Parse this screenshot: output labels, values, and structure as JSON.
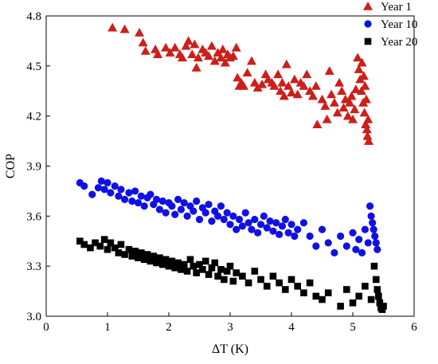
{
  "chart_data": {
    "type": "scatter",
    "xlabel": "ΔT (K)",
    "ylabel": "COP",
    "xlim": [
      0,
      6
    ],
    "ylim": [
      3.0,
      4.8
    ],
    "x_ticks": [
      "0",
      "1",
      "2",
      "3",
      "4",
      "5",
      "6"
    ],
    "y_ticks": [
      "3.0",
      "3.3",
      "3.6",
      "3.9",
      "4.2",
      "4.5",
      "4.8"
    ],
    "grid": false,
    "legend_position": "top-right",
    "series": [
      {
        "name": "Year 1",
        "marker": "triangle",
        "color": "#cc1f1a",
        "points": [
          [
            1.08,
            4.73
          ],
          [
            1.28,
            4.72
          ],
          [
            1.52,
            4.7
          ],
          [
            1.58,
            4.64
          ],
          [
            1.62,
            4.59
          ],
          [
            1.78,
            4.6
          ],
          [
            1.82,
            4.57
          ],
          [
            1.95,
            4.61
          ],
          [
            2.02,
            4.58
          ],
          [
            2.1,
            4.61
          ],
          [
            2.18,
            4.57
          ],
          [
            2.22,
            4.55
          ],
          [
            2.28,
            4.62
          ],
          [
            2.32,
            4.65
          ],
          [
            2.38,
            4.57
          ],
          [
            2.42,
            4.63
          ],
          [
            2.45,
            4.49
          ],
          [
            2.48,
            4.55
          ],
          [
            2.55,
            4.6
          ],
          [
            2.6,
            4.58
          ],
          [
            2.65,
            4.56
          ],
          [
            2.7,
            4.62
          ],
          [
            2.75,
            4.53
          ],
          [
            2.8,
            4.58
          ],
          [
            2.85,
            4.55
          ],
          [
            2.88,
            4.6
          ],
          [
            2.92,
            4.52
          ],
          [
            2.96,
            4.57
          ],
          [
            3.0,
            4.55
          ],
          [
            3.05,
            4.56
          ],
          [
            3.1,
            4.61
          ],
          [
            3.12,
            4.43
          ],
          [
            3.15,
            4.38
          ],
          [
            3.18,
            4.4
          ],
          [
            3.22,
            4.38
          ],
          [
            3.28,
            4.46
          ],
          [
            3.35,
            4.53
          ],
          [
            3.4,
            4.4
          ],
          [
            3.45,
            4.37
          ],
          [
            3.52,
            4.39
          ],
          [
            3.58,
            4.45
          ],
          [
            3.62,
            4.42
          ],
          [
            3.68,
            4.4
          ],
          [
            3.72,
            4.38
          ],
          [
            3.78,
            4.45
          ],
          [
            3.82,
            4.35
          ],
          [
            3.85,
            4.4
          ],
          [
            3.88,
            4.32
          ],
          [
            3.92,
            4.51
          ],
          [
            3.95,
            4.38
          ],
          [
            4.0,
            4.34
          ],
          [
            4.05,
            4.42
          ],
          [
            4.1,
            4.33
          ],
          [
            4.15,
            4.4
          ],
          [
            4.2,
            4.38
          ],
          [
            4.25,
            4.45
          ],
          [
            4.3,
            4.35
          ],
          [
            4.35,
            4.32
          ],
          [
            4.4,
            4.38
          ],
          [
            4.42,
            4.15
          ],
          [
            4.5,
            4.3
          ],
          [
            4.55,
            4.26
          ],
          [
            4.58,
            4.18
          ],
          [
            4.62,
            4.47
          ],
          [
            4.65,
            4.33
          ],
          [
            4.7,
            4.28
          ],
          [
            4.75,
            4.22
          ],
          [
            4.78,
            4.4
          ],
          [
            4.82,
            4.35
          ],
          [
            4.85,
            4.25
          ],
          [
            4.88,
            4.3
          ],
          [
            4.92,
            4.2
          ],
          [
            4.95,
            4.28
          ],
          [
            4.98,
            4.32
          ],
          [
            5.0,
            4.18
          ],
          [
            5.03,
            4.24
          ],
          [
            5.05,
            4.36
          ],
          [
            5.08,
            4.55
          ],
          [
            5.1,
            4.48
          ],
          [
            5.12,
            4.42
          ],
          [
            5.14,
            4.35
          ],
          [
            5.15,
            4.52
          ],
          [
            5.17,
            4.28
          ],
          [
            5.18,
            4.44
          ],
          [
            5.19,
            4.22
          ],
          [
            5.2,
            4.38
          ],
          [
            5.21,
            4.15
          ],
          [
            5.22,
            4.3
          ],
          [
            5.23,
            4.12
          ],
          [
            5.24,
            4.08
          ],
          [
            5.25,
            4.18
          ],
          [
            5.26,
            4.05
          ]
        ]
      },
      {
        "name": "Year 10",
        "marker": "circle",
        "color": "#1010e6",
        "points": [
          [
            0.55,
            3.8
          ],
          [
            0.62,
            3.78
          ],
          [
            0.75,
            3.73
          ],
          [
            0.85,
            3.77
          ],
          [
            0.9,
            3.81
          ],
          [
            0.95,
            3.76
          ],
          [
            1.0,
            3.8
          ],
          [
            1.05,
            3.74
          ],
          [
            1.12,
            3.78
          ],
          [
            1.18,
            3.72
          ],
          [
            1.22,
            3.76
          ],
          [
            1.28,
            3.7
          ],
          [
            1.35,
            3.74
          ],
          [
            1.4,
            3.69
          ],
          [
            1.45,
            3.75
          ],
          [
            1.5,
            3.68
          ],
          [
            1.55,
            3.72
          ],
          [
            1.6,
            3.66
          ],
          [
            1.65,
            3.71
          ],
          [
            1.7,
            3.73
          ],
          [
            1.75,
            3.67
          ],
          [
            1.8,
            3.7
          ],
          [
            1.85,
            3.64
          ],
          [
            1.9,
            3.69
          ],
          [
            1.95,
            3.62
          ],
          [
            2.0,
            3.68
          ],
          [
            2.05,
            3.66
          ],
          [
            2.1,
            3.61
          ],
          [
            2.15,
            3.7
          ],
          [
            2.2,
            3.64
          ],
          [
            2.25,
            3.68
          ],
          [
            2.3,
            3.6
          ],
          [
            2.35,
            3.66
          ],
          [
            2.4,
            3.63
          ],
          [
            2.45,
            3.69
          ],
          [
            2.5,
            3.58
          ],
          [
            2.55,
            3.65
          ],
          [
            2.6,
            3.62
          ],
          [
            2.65,
            3.67
          ],
          [
            2.7,
            3.57
          ],
          [
            2.75,
            3.63
          ],
          [
            2.8,
            3.6
          ],
          [
            2.85,
            3.66
          ],
          [
            2.9,
            3.58
          ],
          [
            2.95,
            3.62
          ],
          [
            3.0,
            3.55
          ],
          [
            3.05,
            3.6
          ],
          [
            3.1,
            3.52
          ],
          [
            3.15,
            3.58
          ],
          [
            3.2,
            3.54
          ],
          [
            3.25,
            3.62
          ],
          [
            3.3,
            3.56
          ],
          [
            3.35,
            3.52
          ],
          [
            3.4,
            3.58
          ],
          [
            3.45,
            3.5
          ],
          [
            3.5,
            3.55
          ],
          [
            3.55,
            3.6
          ],
          [
            3.6,
            3.53
          ],
          [
            3.65,
            3.57
          ],
          [
            3.7,
            3.51
          ],
          [
            3.75,
            3.56
          ],
          [
            3.8,
            3.49
          ],
          [
            3.85,
            3.54
          ],
          [
            3.9,
            3.58
          ],
          [
            3.95,
            3.5
          ],
          [
            4.0,
            3.55
          ],
          [
            4.05,
            3.48
          ],
          [
            4.1,
            3.52
          ],
          [
            4.2,
            3.56
          ],
          [
            4.3,
            3.48
          ],
          [
            4.4,
            3.42
          ],
          [
            4.5,
            3.52
          ],
          [
            4.6,
            3.44
          ],
          [
            4.7,
            3.38
          ],
          [
            4.8,
            3.48
          ],
          [
            4.9,
            3.42
          ],
          [
            5.0,
            3.5
          ],
          [
            5.05,
            3.4
          ],
          [
            5.1,
            3.46
          ],
          [
            5.15,
            3.38
          ],
          [
            5.2,
            3.52
          ],
          [
            5.25,
            3.44
          ],
          [
            5.28,
            3.66
          ],
          [
            5.3,
            3.6
          ],
          [
            5.32,
            3.56
          ],
          [
            5.34,
            3.52
          ],
          [
            5.36,
            3.48
          ],
          [
            5.38,
            3.44
          ],
          [
            5.4,
            3.4
          ]
        ]
      },
      {
        "name": "Year 20",
        "marker": "square",
        "color": "#000000",
        "points": [
          [
            0.55,
            3.45
          ],
          [
            0.62,
            3.43
          ],
          [
            0.72,
            3.41
          ],
          [
            0.8,
            3.44
          ],
          [
            0.88,
            3.42
          ],
          [
            0.95,
            3.46
          ],
          [
            1.0,
            3.4
          ],
          [
            1.05,
            3.44
          ],
          [
            1.12,
            3.41
          ],
          [
            1.18,
            3.38
          ],
          [
            1.22,
            3.43
          ],
          [
            1.28,
            3.37
          ],
          [
            1.35,
            3.4
          ],
          [
            1.4,
            3.36
          ],
          [
            1.45,
            3.39
          ],
          [
            1.5,
            3.35
          ],
          [
            1.55,
            3.38
          ],
          [
            1.6,
            3.34
          ],
          [
            1.65,
            3.37
          ],
          [
            1.7,
            3.33
          ],
          [
            1.75,
            3.36
          ],
          [
            1.8,
            3.32
          ],
          [
            1.85,
            3.35
          ],
          [
            1.9,
            3.31
          ],
          [
            1.95,
            3.34
          ],
          [
            2.0,
            3.3
          ],
          [
            2.05,
            3.33
          ],
          [
            2.1,
            3.29
          ],
          [
            2.15,
            3.32
          ],
          [
            2.2,
            3.28
          ],
          [
            2.25,
            3.31
          ],
          [
            2.3,
            3.27
          ],
          [
            2.35,
            3.34
          ],
          [
            2.4,
            3.3
          ],
          [
            2.45,
            3.26
          ],
          [
            2.5,
            3.31
          ],
          [
            2.55,
            3.28
          ],
          [
            2.6,
            3.33
          ],
          [
            2.65,
            3.25
          ],
          [
            2.7,
            3.29
          ],
          [
            2.75,
            3.32
          ],
          [
            2.8,
            3.24
          ],
          [
            2.85,
            3.28
          ],
          [
            2.9,
            3.22
          ],
          [
            2.95,
            3.27
          ],
          [
            3.0,
            3.3
          ],
          [
            3.05,
            3.21
          ],
          [
            3.1,
            3.26
          ],
          [
            3.2,
            3.24
          ],
          [
            3.3,
            3.2
          ],
          [
            3.4,
            3.27
          ],
          [
            3.5,
            3.22
          ],
          [
            3.6,
            3.18
          ],
          [
            3.7,
            3.24
          ],
          [
            3.8,
            3.2
          ],
          [
            3.9,
            3.16
          ],
          [
            4.0,
            3.22
          ],
          [
            4.1,
            3.18
          ],
          [
            4.2,
            3.14
          ],
          [
            4.3,
            3.2
          ],
          [
            4.4,
            3.12
          ],
          [
            4.5,
            3.1
          ],
          [
            4.6,
            3.14
          ],
          [
            4.8,
            3.06
          ],
          [
            4.9,
            3.16
          ],
          [
            5.0,
            3.08
          ],
          [
            5.1,
            3.12
          ],
          [
            5.2,
            3.18
          ],
          [
            5.3,
            3.1
          ],
          [
            5.35,
            3.3
          ],
          [
            5.38,
            3.22
          ],
          [
            5.4,
            3.16
          ],
          [
            5.42,
            3.12
          ],
          [
            5.44,
            3.08
          ],
          [
            5.46,
            3.05
          ],
          [
            5.48,
            3.04
          ],
          [
            5.5,
            3.06
          ]
        ]
      }
    ]
  }
}
